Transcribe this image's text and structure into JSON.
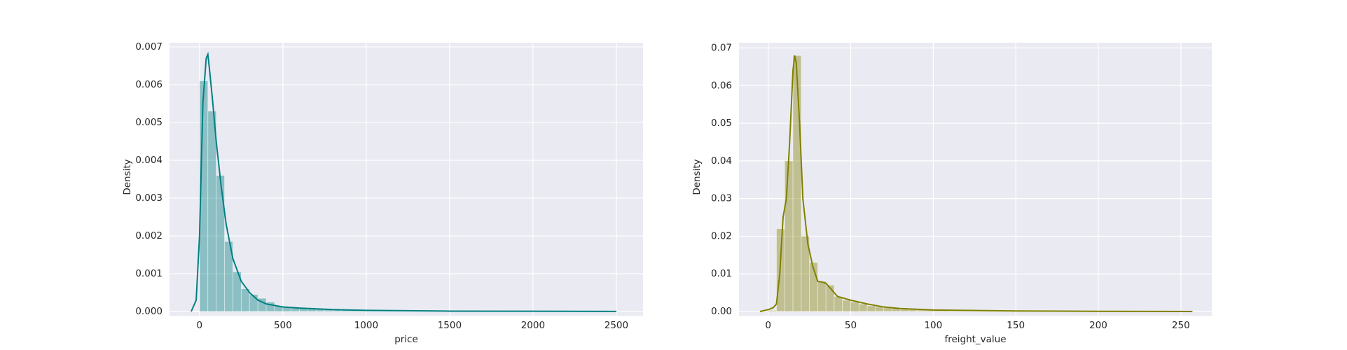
{
  "chart_data": [
    {
      "type": "histogram",
      "xlabel": "price",
      "ylabel": "Density",
      "color": "#008080",
      "grid": true,
      "xlim": [
        -180,
        2660
      ],
      "ylim": [
        0,
        0.00711
      ],
      "xticks": [
        0,
        500,
        1000,
        1500,
        2000,
        2500
      ],
      "yticks": [
        {
          "value": 0,
          "label": "0.000"
        },
        {
          "value": 0.001,
          "label": "0.001"
        },
        {
          "value": 0.002,
          "label": "0.002"
        },
        {
          "value": 0.003,
          "label": "0.003"
        },
        {
          "value": 0.004,
          "label": "0.004"
        },
        {
          "value": 0.005,
          "label": "0.005"
        },
        {
          "value": 0.006,
          "label": "0.006"
        },
        {
          "value": 0.007,
          "label": "0.007"
        }
      ],
      "bins": [
        0,
        50,
        100,
        150,
        200,
        250,
        300,
        350,
        400,
        450,
        500,
        550,
        600,
        650,
        700,
        750,
        800,
        850,
        900,
        950,
        1000,
        1050,
        1100,
        1150,
        1200,
        1250,
        1300,
        1350,
        1400,
        1450,
        1500,
        1550,
        1600,
        1650,
        1700,
        1750,
        1800,
        1850,
        1900,
        1950,
        2000,
        2050,
        2100,
        2150,
        2200,
        2250,
        2300,
        2350,
        2400,
        2450,
        2500
      ],
      "values": [
        0.0061,
        0.0053,
        0.0036,
        0.00185,
        0.00105,
        0.0006,
        0.00045,
        0.00035,
        0.00025,
        0.00015,
        0.00012,
        0.0001,
        9e-05,
        7e-05,
        6e-05,
        5e-05,
        5e-05,
        4e-05,
        4e-05,
        3e-05,
        3e-05,
        3e-05,
        2e-05,
        2e-05,
        2e-05,
        2e-05,
        2e-05,
        1e-05,
        1e-05,
        1e-05,
        1e-05,
        1e-05,
        1e-05,
        1e-05,
        1e-05,
        1e-05,
        1e-05,
        1e-05,
        1e-05,
        1e-05,
        1e-05,
        1e-05,
        1e-05,
        1e-05,
        1e-05,
        1e-05,
        1e-05,
        1e-05,
        1e-05,
        1e-05
      ],
      "kde": {
        "x": [
          -50,
          -20,
          0,
          20,
          40,
          50,
          60,
          80,
          100,
          130,
          160,
          200,
          250,
          300,
          350,
          400,
          500,
          600,
          800,
          1000,
          1500,
          2000,
          2500
        ],
        "y": [
          0,
          0.0003,
          0.002,
          0.0055,
          0.0067,
          0.0068,
          0.0064,
          0.0055,
          0.0045,
          0.0033,
          0.0023,
          0.0014,
          0.0008,
          0.0005,
          0.0003,
          0.0002,
          0.00012,
          9e-05,
          5e-05,
          3e-05,
          1e-05,
          8e-06,
          2e-06
        ]
      }
    },
    {
      "type": "histogram",
      "xlabel": "freight_value",
      "ylabel": "Density",
      "color": "#808000",
      "grid": true,
      "xlim": [
        -17.7,
        268.75
      ],
      "ylim": [
        0,
        0.0714
      ],
      "xticks": [
        0,
        50,
        100,
        150,
        200,
        250
      ],
      "yticks": [
        {
          "value": 0,
          "label": "0.00"
        },
        {
          "value": 0.01,
          "label": "0.01"
        },
        {
          "value": 0.02,
          "label": "0.02"
        },
        {
          "value": 0.03,
          "label": "0.03"
        },
        {
          "value": 0.04,
          "label": "0.04"
        },
        {
          "value": 0.05,
          "label": "0.05"
        },
        {
          "value": 0.06,
          "label": "0.06"
        },
        {
          "value": 0.07,
          "label": "0.07"
        }
      ],
      "bins": [
        0,
        5,
        10,
        15,
        20,
        25,
        30,
        35,
        40,
        45,
        50,
        55,
        60,
        65,
        70,
        75,
        80,
        85,
        90,
        95,
        100,
        105,
        110,
        115,
        120,
        125,
        130,
        135,
        140,
        145,
        150,
        155,
        160,
        165,
        170,
        175,
        180,
        185,
        190,
        195,
        200,
        205,
        210,
        215,
        220,
        225,
        230,
        235,
        240,
        245,
        250,
        255
      ],
      "values": [
        0.0003,
        0.022,
        0.04,
        0.068,
        0.02,
        0.013,
        0.008,
        0.007,
        0.004,
        0.003,
        0.0025,
        0.002,
        0.0015,
        0.0012,
        0.001,
        0.0008,
        0.0006,
        0.0005,
        0.0004,
        0.0004,
        0.0003,
        0.0003,
        0.0002,
        0.0002,
        0.0002,
        0.00015,
        0.00015,
        0.0001,
        0.0001,
        0.0001,
        0.0001,
        8e-05,
        8e-05,
        6e-05,
        6e-05,
        5e-05,
        5e-05,
        4e-05,
        4e-05,
        3e-05,
        3e-05,
        3e-05,
        2e-05,
        2e-05,
        2e-05,
        2e-05,
        1e-05,
        1e-05,
        1e-05,
        1e-05,
        1e-05
      ],
      "kde": {
        "x": [
          -5,
          0,
          3,
          5,
          7,
          9,
          11,
          13,
          15,
          16,
          17,
          19,
          21,
          24,
          27,
          30,
          33,
          35,
          38,
          42,
          50,
          60,
          70,
          80,
          100,
          150,
          200,
          257
        ],
        "y": [
          0,
          0.0005,
          0.001,
          0.002,
          0.01,
          0.025,
          0.03,
          0.045,
          0.064,
          0.068,
          0.066,
          0.05,
          0.03,
          0.018,
          0.012,
          0.008,
          0.0078,
          0.0075,
          0.006,
          0.004,
          0.003,
          0.002,
          0.0012,
          0.0008,
          0.0004,
          0.00015,
          5e-05,
          1e-05
        ]
      }
    }
  ]
}
